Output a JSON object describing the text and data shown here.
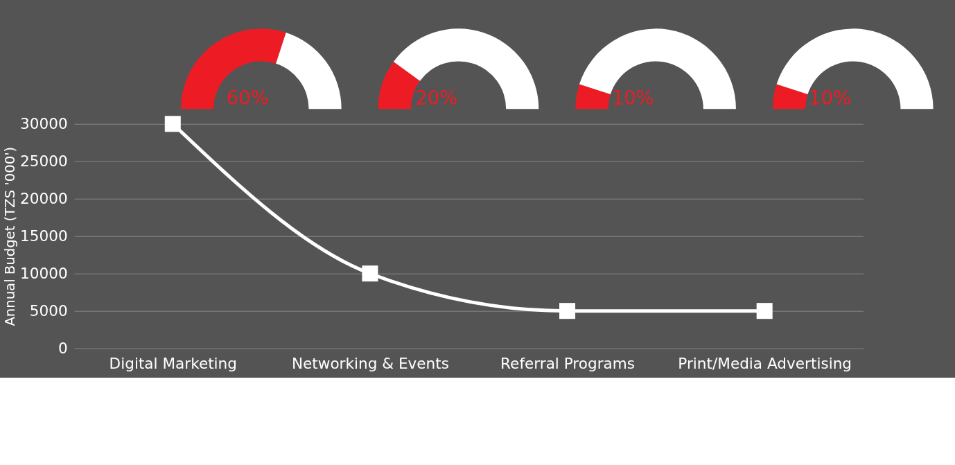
{
  "chart_data": [
    {
      "type": "donut",
      "categories": [
        null,
        null
      ],
      "values": [
        60,
        40
      ],
      "colors": [
        "#ed1c24",
        "#ffffff"
      ],
      "value_labels": [
        "60%",
        null
      ]
    },
    {
      "type": "donut",
      "categories": [
        null,
        null
      ],
      "values": [
        20,
        80
      ],
      "colors": [
        "#ed1c24",
        "#ffffff"
      ],
      "value_labels": [
        "20%",
        null
      ]
    },
    {
      "type": "donut",
      "categories": [
        null,
        null
      ],
      "values": [
        10,
        90
      ],
      "colors": [
        "#ed1c24",
        "#ffffff"
      ],
      "value_labels": [
        "10%",
        null
      ]
    },
    {
      "type": "donut",
      "categories": [
        null,
        null
      ],
      "values": [
        10,
        90
      ],
      "colors": [
        "#ed1c24",
        "#ffffff"
      ],
      "value_labels": [
        "10%",
        null
      ]
    },
    {
      "type": "line",
      "ylabel": "Annual Budget (TZS '000')",
      "categories": [
        "Digital Marketing",
        "Networking & Events",
        "Referral Programs",
        "Print/Media Advertising"
      ],
      "series": [
        {
          "color": "#ffffff",
          "values": [
            30000,
            10000,
            5000,
            5000
          ]
        }
      ],
      "ylim": [
        0,
        30000
      ],
      "yticks": [
        0,
        5000,
        10000,
        15000,
        20000,
        25000,
        30000
      ],
      "grid": "y",
      "marker": "square",
      "line_style": "solid"
    }
  ]
}
